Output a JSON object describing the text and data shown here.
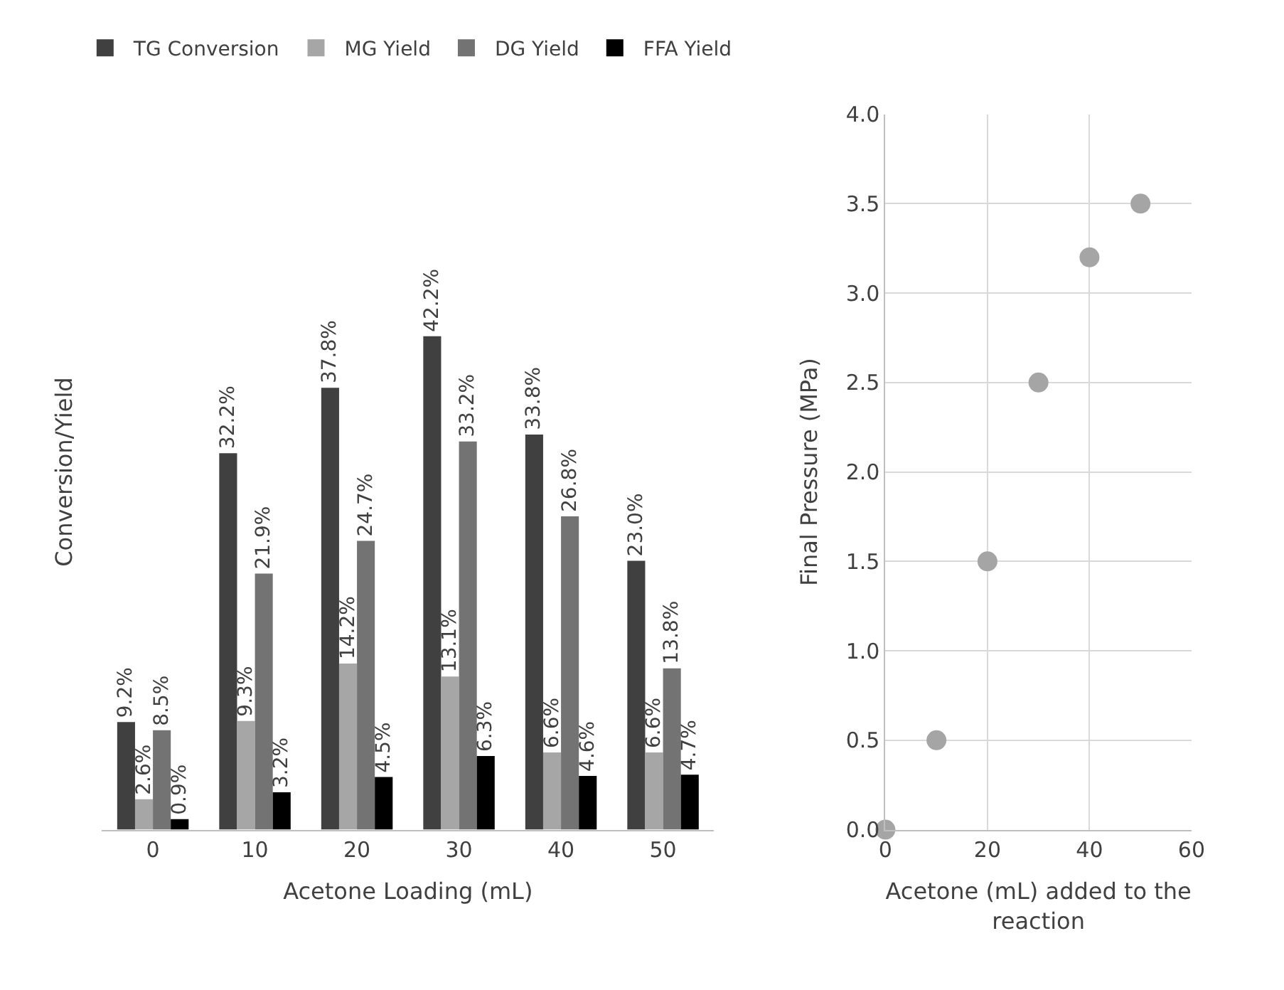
{
  "chart_data": [
    {
      "type": "bar",
      "xlabel": "Acetone Loading (mL)",
      "ylabel": "Conversion/Yield",
      "categories": [
        "0",
        "10",
        "20",
        "30",
        "40",
        "50"
      ],
      "legend": "top",
      "grid": false,
      "series": [
        {
          "name": "TG Conversion",
          "color": "#404040",
          "values": [
            9.2,
            32.2,
            37.8,
            42.2,
            33.8,
            23.0
          ],
          "value_labels": [
            "9.2%",
            "32.2%",
            "37.8%",
            "42.2%",
            "33.8%",
            "23.0%"
          ]
        },
        {
          "name": "MG Yield",
          "color": "#a6a6a6",
          "values": [
            2.6,
            9.3,
            14.2,
            13.1,
            6.6,
            6.6
          ],
          "value_labels": [
            "2.6%",
            "9.3%",
            "14.2%",
            "13.1%",
            "6.6%",
            "6.6%"
          ]
        },
        {
          "name": "DG Yield",
          "color": "#737373",
          "values": [
            8.5,
            21.9,
            24.7,
            33.2,
            26.8,
            13.8
          ],
          "value_labels": [
            "8.5%",
            "21.9%",
            "24.7%",
            "33.2%",
            "26.8%",
            "13.8%"
          ]
        },
        {
          "name": "FFA Yield",
          "color": "#000000",
          "values": [
            0.9,
            3.2,
            4.5,
            6.3,
            4.6,
            4.7
          ],
          "value_labels": [
            "0.9%",
            "3.2%",
            "4.5%",
            "6.3%",
            "4.6%",
            "4.7%"
          ]
        }
      ]
    },
    {
      "type": "scatter",
      "xlabel": "Acetone (mL) added to the reaction",
      "ylabel": "Final Pressure (MPa)",
      "x": [
        0,
        10,
        20,
        30,
        40,
        50
      ],
      "marker": "circle",
      "grid": true,
      "legend": false,
      "series": [
        {
          "color": "#a5a5a5",
          "values": [
            0,
            0.5,
            1.5,
            2.5,
            3.2,
            3.5
          ]
        }
      ],
      "xlim": [
        0,
        60
      ],
      "xticks": [
        0,
        20,
        40,
        60
      ],
      "ylim": [
        0,
        4
      ],
      "yticks": [
        {
          "value": 0,
          "label": "0.0"
        },
        {
          "value": 0.5,
          "label": "0.5"
        },
        {
          "value": 1,
          "label": "1.0"
        },
        {
          "value": 1.5,
          "label": "1.5"
        },
        {
          "value": 2,
          "label": "2.0"
        },
        {
          "value": 2.5,
          "label": "2.5"
        },
        {
          "value": 3,
          "label": "3.0"
        },
        {
          "value": 3.5,
          "label": "3.5"
        },
        {
          "value": 4,
          "label": "4.0"
        }
      ]
    }
  ]
}
